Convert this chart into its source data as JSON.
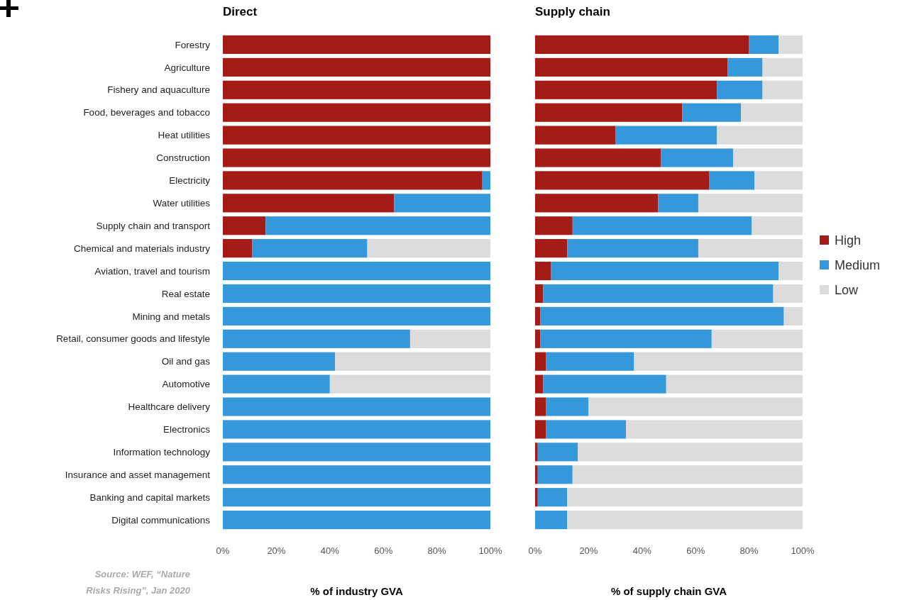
{
  "chart_data": [
    {
      "type": "bar",
      "orientation": "horizontal",
      "stacked": true,
      "title": "Direct",
      "xlabel": "% of industry GVA",
      "categories": [
        "Forestry",
        "Agriculture",
        "Fishery and aquaculture",
        "Food, beverages and tobacco",
        "Heat utilities",
        "Construction",
        "Electricity",
        "Water utilities",
        "Supply chain and transport",
        "Chemical and materials industry",
        "Aviation, travel and tourism",
        "Real estate",
        "Mining and metals",
        "Retail, consumer goods and lifestyle",
        "Oil and gas",
        "Automotive",
        "Healthcare delivery",
        "Electronics",
        "Information technology",
        "Insurance and asset management",
        "Banking and capital markets",
        "Digital communications"
      ],
      "series": [
        {
          "color": "#a51c17",
          "values": [
            100,
            100,
            100,
            100,
            100,
            100,
            97,
            64,
            16,
            11,
            0,
            0,
            0,
            0,
            0,
            0,
            0,
            0,
            0,
            0,
            0,
            0
          ]
        },
        {
          "color": "#3498db",
          "values": [
            0,
            0,
            0,
            0,
            0,
            0,
            3,
            36,
            84,
            43,
            100,
            100,
            100,
            70,
            42,
            40,
            100,
            100,
            100,
            100,
            100,
            100
          ]
        },
        {
          "color": "#dcdcdc",
          "values": [
            0,
            0,
            0,
            0,
            0,
            0,
            0,
            0,
            0,
            46,
            0,
            0,
            0,
            30,
            58,
            60,
            0,
            0,
            0,
            0,
            0,
            0
          ]
        }
      ],
      "xlim": [
        0,
        100
      ],
      "xticks": [
        {
          "value": 0,
          "label": "0%"
        },
        {
          "value": 20,
          "label": "20%"
        },
        {
          "value": 40,
          "label": "40%"
        },
        {
          "value": 60,
          "label": "60%"
        },
        {
          "value": 80,
          "label": "80%"
        },
        {
          "value": 100,
          "label": "100%"
        }
      ],
      "annotations": [
        "Source: WEF, “Nature Risks Rising”, Jan 2020"
      ]
    },
    {
      "type": "bar",
      "orientation": "horizontal",
      "stacked": true,
      "title": "Supply chain",
      "xlabel": "% of supply chain GVA",
      "tick_labels": "x",
      "legend": "right",
      "categories": [
        null,
        null,
        null,
        null,
        null,
        null,
        null,
        null,
        null,
        null,
        null,
        null,
        null,
        null,
        null,
        null,
        null,
        null,
        null,
        null,
        null,
        null
      ],
      "series": [
        {
          "name": "High",
          "color": "#a51c17",
          "values": [
            80,
            72,
            68,
            55,
            30,
            47,
            65,
            46,
            14,
            12,
            6,
            3,
            2,
            2,
            4,
            3,
            4,
            4,
            1,
            1,
            1,
            0
          ]
        },
        {
          "name": "Medium",
          "color": "#3498db",
          "values": [
            11,
            13,
            17,
            22,
            38,
            27,
            17,
            15,
            67,
            49,
            85,
            86,
            91,
            64,
            33,
            46,
            16,
            30,
            15,
            13,
            11,
            12
          ]
        },
        {
          "name": "Low",
          "color": "#dcdcdc",
          "values": [
            9,
            15,
            15,
            23,
            32,
            26,
            18,
            39,
            19,
            39,
            9,
            11,
            7,
            34,
            63,
            51,
            80,
            66,
            84,
            86,
            88,
            88
          ]
        }
      ],
      "xlim": [
        0,
        100
      ],
      "xticks": [
        {
          "value": 0,
          "label": "0%"
        },
        {
          "value": 20,
          "label": "20%"
        },
        {
          "value": 40,
          "label": "40%"
        },
        {
          "value": 60,
          "label": "60%"
        },
        {
          "value": 80,
          "label": "80%"
        },
        {
          "value": 100,
          "label": "100%"
        }
      ]
    }
  ]
}
